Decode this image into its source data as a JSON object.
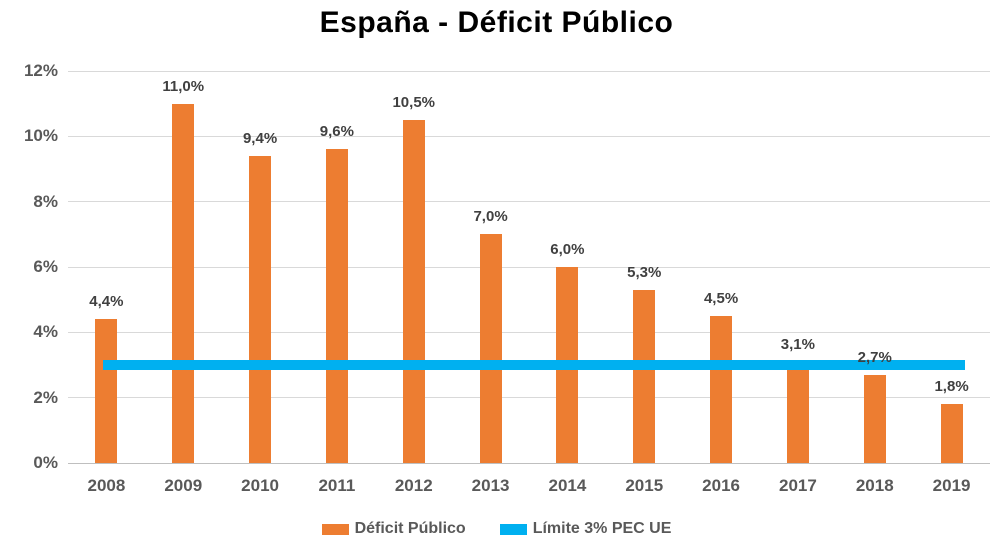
{
  "title": "España - Déficit Público",
  "colors": {
    "bar": "#ED7D31",
    "line": "#00B0F0",
    "bar_label": "#404040",
    "axis_text": "#595959",
    "gridline": "#D9D9D9",
    "axis_line": "#BFBFBF",
    "title": "#000000",
    "background": "#FFFFFF"
  },
  "chart_data": {
    "type": "bar",
    "title": "España - Déficit Público",
    "categories": [
      "2008",
      "2009",
      "2010",
      "2011",
      "2012",
      "2013",
      "2014",
      "2015",
      "2016",
      "2017",
      "2018",
      "2019"
    ],
    "series": [
      {
        "name": "Déficit Público",
        "type": "bar",
        "color": "#ED7D31",
        "values": [
          4.4,
          11.0,
          9.4,
          9.6,
          10.5,
          7.0,
          6.0,
          5.3,
          4.5,
          3.1,
          2.7,
          1.8
        ],
        "data_labels": [
          "4,4%",
          "11,0%",
          "9,4%",
          "9,6%",
          "10,5%",
          "7,0%",
          "6,0%",
          "5,3%",
          "4,5%",
          "3,1%",
          "2,7%",
          "1,8%"
        ]
      },
      {
        "name": "Límite 3% PEC UE",
        "type": "line",
        "color": "#00B0F0",
        "value": 3.0
      }
    ],
    "xlabel": "",
    "ylabel": "",
    "ylim": [
      0,
      12
    ],
    "ytick_step": 2,
    "ytick_labels": [
      "0%",
      "2%",
      "4%",
      "6%",
      "8%",
      "10%",
      "12%"
    ],
    "grid": true,
    "legend_position": "bottom"
  },
  "legend": {
    "items": [
      {
        "label": "Déficit Público",
        "color": "#ED7D31"
      },
      {
        "label": "Límite 3% PEC UE",
        "color": "#00B0F0"
      }
    ]
  }
}
